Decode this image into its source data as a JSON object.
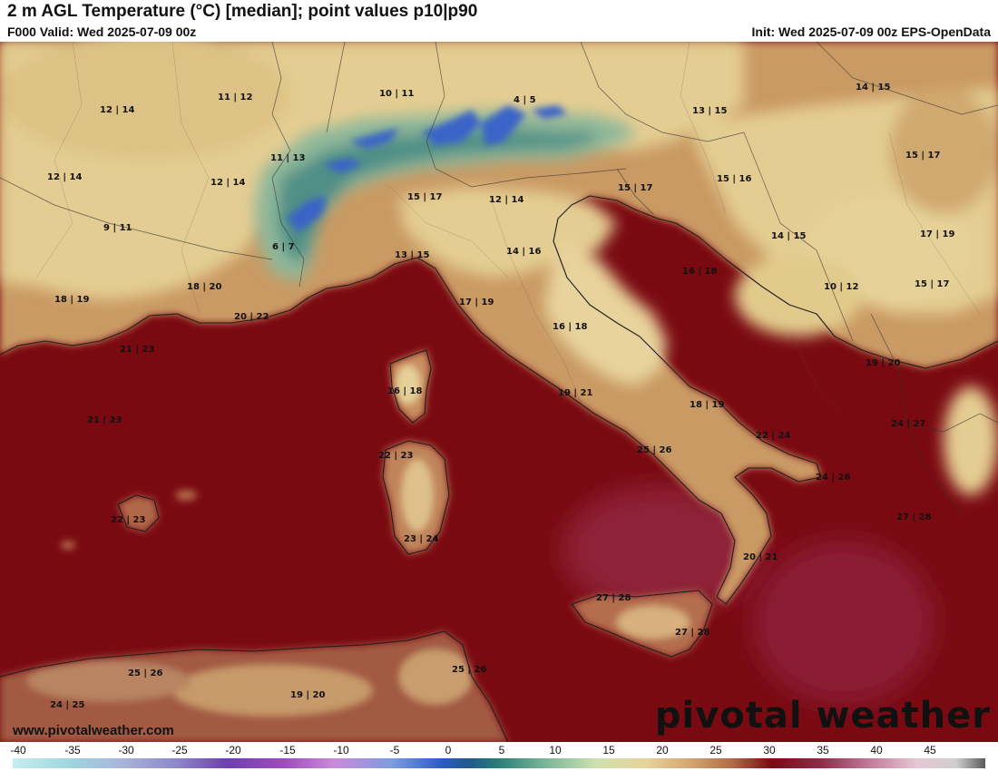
{
  "header": {
    "title": "2 m AGL Temperature (°C) [median]; point values p10|p90",
    "valid": "F000 Valid: Wed 2025-07-09 00z",
    "init": "Init: Wed 2025-07-09 00z EPS-OpenData"
  },
  "footer": {
    "website": "www.pivotalweather.com",
    "brand": "pivotal weather"
  },
  "colorbar": {
    "labels": [
      "-40",
      "-35",
      "-30",
      "-25",
      "-20",
      "-15",
      "-10",
      "-5",
      "0",
      "5",
      "10",
      "15",
      "20",
      "25",
      "30",
      "35",
      "40",
      "45"
    ]
  },
  "colors": {
    "sea": "#7a0a12",
    "sea_warm": "#8e2238",
    "land_warm": "#c0875a",
    "land_mild": "#e3cd94",
    "alpine": "#3f7f7a",
    "snow": "#3a64c8"
  },
  "point_values": [
    {
      "id": "pv-01",
      "text": "12 | 14"
    },
    {
      "id": "pv-02",
      "text": "11 | 12"
    },
    {
      "id": "pv-03",
      "text": "10 | 11"
    },
    {
      "id": "pv-04",
      "text": "4 | 5"
    },
    {
      "id": "pv-05",
      "text": "13 | 15"
    },
    {
      "id": "pv-06",
      "text": "14 | 15"
    },
    {
      "id": "pv-07",
      "text": "12 | 14"
    },
    {
      "id": "pv-08",
      "text": "11 | 13"
    },
    {
      "id": "pv-09",
      "text": "12 | 14"
    },
    {
      "id": "pv-10",
      "text": "15 | 17"
    },
    {
      "id": "pv-11",
      "text": "12 | 14"
    },
    {
      "id": "pv-12",
      "text": "15 | 17"
    },
    {
      "id": "pv-13",
      "text": "15 | 16"
    },
    {
      "id": "pv-14",
      "text": "15 | 17"
    },
    {
      "id": "pv-15",
      "text": "9 | 11"
    },
    {
      "id": "pv-16",
      "text": "6 | 7"
    },
    {
      "id": "pv-17",
      "text": "13 | 15"
    },
    {
      "id": "pv-18",
      "text": "14 | 16"
    },
    {
      "id": "pv-19",
      "text": "14 | 15"
    },
    {
      "id": "pv-20",
      "text": "17 | 19"
    },
    {
      "id": "pv-21",
      "text": "16 | 18"
    },
    {
      "id": "pv-22",
      "text": "18 | 19"
    },
    {
      "id": "pv-23",
      "text": "18 | 20"
    },
    {
      "id": "pv-24",
      "text": "20 | 22"
    },
    {
      "id": "pv-25",
      "text": "17 | 19"
    },
    {
      "id": "pv-26",
      "text": "10 | 12"
    },
    {
      "id": "pv-27",
      "text": "15 | 17"
    },
    {
      "id": "pv-28",
      "text": "16 | 18"
    },
    {
      "id": "pv-29",
      "text": "21 | 23"
    },
    {
      "id": "pv-30",
      "text": "16 | 18"
    },
    {
      "id": "pv-31",
      "text": "19 | 21"
    },
    {
      "id": "pv-32",
      "text": "18 | 19"
    },
    {
      "id": "pv-33",
      "text": "19 | 20"
    },
    {
      "id": "pv-34",
      "text": "21 | 23"
    },
    {
      "id": "pv-35",
      "text": "24 | 27"
    },
    {
      "id": "pv-36",
      "text": "22 | 24"
    },
    {
      "id": "pv-37",
      "text": "25 | 26"
    },
    {
      "id": "pv-38",
      "text": "22 | 23"
    },
    {
      "id": "pv-39",
      "text": "24 | 26"
    },
    {
      "id": "pv-40",
      "text": "22 | 23"
    },
    {
      "id": "pv-41",
      "text": "27 | 28"
    },
    {
      "id": "pv-42",
      "text": "23 | 24"
    },
    {
      "id": "pv-43",
      "text": "20 | 21"
    },
    {
      "id": "pv-44",
      "text": "27 | 28"
    },
    {
      "id": "pv-45",
      "text": "27 | 28"
    },
    {
      "id": "pv-46",
      "text": "25 | 26"
    },
    {
      "id": "pv-47",
      "text": "25 | 26"
    },
    {
      "id": "pv-48",
      "text": "19 | 20"
    },
    {
      "id": "pv-49",
      "text": "24 | 25"
    }
  ]
}
